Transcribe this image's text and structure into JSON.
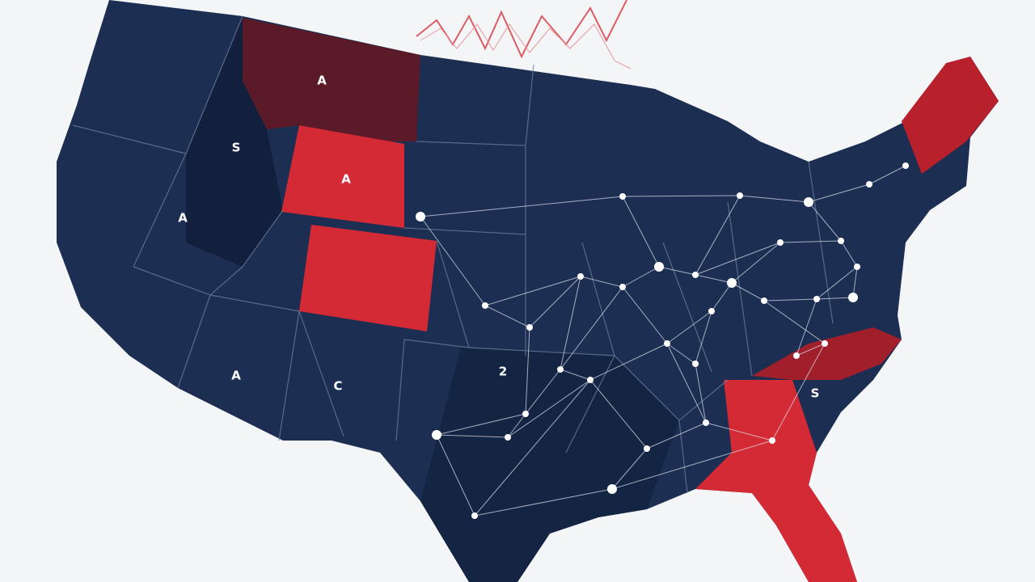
{
  "map": {
    "state_labels": [
      "A",
      "S",
      "A",
      "A",
      "2",
      "C",
      "A",
      "S"
    ]
  }
}
